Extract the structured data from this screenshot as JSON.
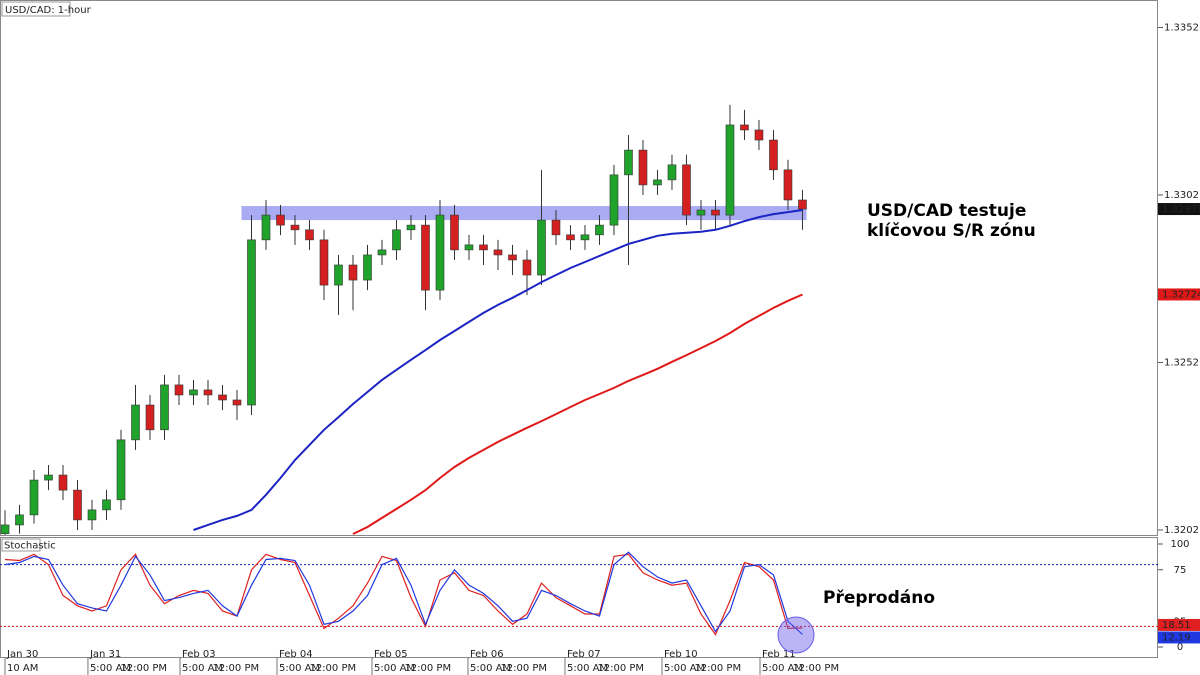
{
  "chart_data": {
    "type": "candlestick",
    "title": "USD/CAD: 1-hour",
    "annotations": [
      "USD/CAD testuje",
      "klíčovou S/R zónu",
      "Přeprodáno"
    ],
    "xlim": [
      -0.345,
      79.52
    ],
    "ylim": [
      1.32006,
      1.33603
    ],
    "yticks": [
      1.32021,
      1.32521,
      1.33021,
      1.33521
    ],
    "xticks": [
      {
        "value": 0,
        "label": "Jan 30"
      },
      {
        "value": 5.72,
        "label": "Jan 31"
      },
      {
        "value": 12.07,
        "label": "Feb 03"
      },
      {
        "value": 18.76,
        "label": "Feb 04"
      },
      {
        "value": 25.31,
        "label": "Feb 05"
      },
      {
        "value": 31.93,
        "label": "Feb 06"
      },
      {
        "value": 38.62,
        "label": "Feb 07"
      },
      {
        "value": 45.31,
        "label": "Feb 10"
      },
      {
        "value": 52.07,
        "label": "Feb 11"
      }
    ],
    "xticks_minor": [
      {
        "value": 0,
        "label": "10 AM"
      },
      {
        "value": 5.72,
        "label": "5:00 AM"
      },
      {
        "value": 7.82,
        "label": "12:00 PM"
      },
      {
        "value": 12.07,
        "label": "5:00 AM"
      },
      {
        "value": 14.17,
        "label": "12:00 PM"
      },
      {
        "value": 18.76,
        "label": "5:00 AM"
      },
      {
        "value": 20.86,
        "label": "12:00 PM"
      },
      {
        "value": 25.31,
        "label": "5:00 AM"
      },
      {
        "value": 27.41,
        "label": "12:00 PM"
      },
      {
        "value": 31.93,
        "label": "5:00 AM"
      },
      {
        "value": 34.03,
        "label": "12:00 PM"
      },
      {
        "value": 38.62,
        "label": "5:00 AM"
      },
      {
        "value": 40.72,
        "label": "12:00 PM"
      },
      {
        "value": 45.31,
        "label": "5:00 AM"
      },
      {
        "value": 47.41,
        "label": "12:00 PM"
      },
      {
        "value": 52.07,
        "label": "5:00 AM"
      },
      {
        "value": 54.17,
        "label": "12:00 PM"
      }
    ],
    "up_color": "#1fa32a",
    "down_color": "#d42020",
    "open": [
      1.3201,
      1.32036,
      1.32066,
      1.3217,
      1.32185,
      1.3214,
      1.32051,
      1.32081,
      1.32111,
      1.3229,
      1.32394,
      1.3232,
      1.32454,
      1.32424,
      1.32439,
      1.32424,
      1.32409,
      1.32394,
      1.32887,
      1.32961,
      1.32931,
      1.32917,
      1.32887,
      1.32752,
      1.32812,
      1.32767,
      1.32842,
      1.32857,
      1.32917,
      1.32931,
      1.32737,
      1.32961,
      1.32857,
      1.32872,
      1.32857,
      1.32842,
      1.32827,
      1.32782,
      1.32946,
      1.32902,
      1.32887,
      1.32902,
      1.32931,
      1.33081,
      1.33155,
      1.33051,
      1.33066,
      1.33111,
      1.32961,
      1.32976,
      1.32961,
      1.3323,
      1.33215,
      1.33185,
      1.33096,
      1.33006
    ],
    "high": [
      1.3208,
      1.32096,
      1.322,
      1.32215,
      1.32215,
      1.3217,
      1.32111,
      1.32141,
      1.3232,
      1.32454,
      1.32424,
      1.32484,
      1.32484,
      1.32469,
      1.32469,
      1.32454,
      1.32439,
      1.32961,
      1.33006,
      1.32991,
      1.32961,
      1.32946,
      1.32917,
      1.32842,
      1.32842,
      1.32872,
      1.32887,
      1.32946,
      1.32961,
      1.32961,
      1.33006,
      1.32991,
      1.32902,
      1.32902,
      1.32887,
      1.32872,
      1.32857,
      1.33096,
      1.32976,
      1.32931,
      1.32931,
      1.32961,
      1.33111,
      1.332,
      1.33185,
      1.33096,
      1.33141,
      1.33141,
      1.33006,
      1.33006,
      1.3329,
      1.33275,
      1.33245,
      1.33215,
      1.33126,
      1.33036
    ],
    "low": [
      1.32006,
      1.3201,
      1.3204,
      1.3214,
      1.3211,
      1.32021,
      1.32021,
      1.32051,
      1.32081,
      1.3226,
      1.3229,
      1.3229,
      1.32394,
      1.32394,
      1.32394,
      1.32379,
      1.32349,
      1.32364,
      1.32857,
      1.32901,
      1.32872,
      1.32857,
      1.32707,
      1.32663,
      1.32677,
      1.32737,
      1.32812,
      1.32827,
      1.32887,
      1.32677,
      1.32707,
      1.32827,
      1.32827,
      1.32812,
      1.32797,
      1.32782,
      1.32722,
      1.32752,
      1.32872,
      1.32857,
      1.32857,
      1.32872,
      1.32901,
      1.32812,
      1.33021,
      1.33021,
      1.33036,
      1.32931,
      1.32917,
      1.32917,
      1.32931,
      1.33185,
      1.33155,
      1.33066,
      1.32976,
      1.32917
    ],
    "close": [
      1.32036,
      1.32066,
      1.3217,
      1.32185,
      1.3214,
      1.32051,
      1.32081,
      1.32111,
      1.3229,
      1.32394,
      1.3232,
      1.32454,
      1.32424,
      1.32439,
      1.32424,
      1.32409,
      1.32394,
      1.32887,
      1.32961,
      1.32931,
      1.32917,
      1.32887,
      1.32752,
      1.32812,
      1.32767,
      1.32842,
      1.32857,
      1.32917,
      1.32931,
      1.32737,
      1.32961,
      1.32857,
      1.32872,
      1.32857,
      1.32842,
      1.32827,
      1.32782,
      1.32946,
      1.32902,
      1.32887,
      1.32902,
      1.32931,
      1.33081,
      1.33155,
      1.33051,
      1.33066,
      1.33111,
      1.32961,
      1.32976,
      1.32961,
      1.3323,
      1.33215,
      1.33185,
      1.33096,
      1.33006,
      1.32979
    ],
    "zone": {
      "low": 1.32946,
      "high": 1.32988,
      "start": 17,
      "color": "#a9acf2"
    },
    "overlays": [
      {
        "color": "#1c24c4",
        "values": [
          null,
          null,
          null,
          null,
          null,
          null,
          null,
          null,
          null,
          null,
          null,
          null,
          null,
          1.32021,
          1.32036,
          1.32051,
          1.32063,
          1.32081,
          1.32126,
          1.32176,
          1.3223,
          1.32275,
          1.3232,
          1.32358,
          1.32397,
          1.32433,
          1.32469,
          1.32499,
          1.32529,
          1.32558,
          1.32588,
          1.32615,
          1.32642,
          1.32669,
          1.32693,
          1.32714,
          1.32737,
          1.32761,
          1.32782,
          1.32803,
          1.32821,
          1.32839,
          1.32857,
          1.32875,
          1.32887,
          1.32899,
          1.32905,
          1.32908,
          1.32911,
          1.32917,
          1.32929,
          1.32943,
          1.32955,
          1.32964,
          1.3297,
          1.32976
        ]
      },
      {
        "color": "#e01818",
        "values": [
          null,
          null,
          null,
          null,
          null,
          null,
          null,
          null,
          null,
          null,
          null,
          null,
          null,
          null,
          null,
          null,
          null,
          null,
          null,
          null,
          null,
          null,
          null,
          null,
          1.32009,
          1.3203,
          1.32057,
          1.32084,
          1.32111,
          1.3214,
          1.32176,
          1.32209,
          1.32236,
          1.3226,
          1.32284,
          1.32305,
          1.32326,
          1.32346,
          1.32367,
          1.32388,
          1.32409,
          1.32427,
          1.32445,
          1.32466,
          1.32484,
          1.32502,
          1.32523,
          1.32543,
          1.32564,
          1.32585,
          1.32609,
          1.32636,
          1.3266,
          1.32684,
          1.32705,
          1.32724
        ]
      }
    ],
    "stochastic": {
      "title": "Stochastic",
      "ylim": [
        0,
        100
      ],
      "yticks": [
        0,
        25,
        75,
        100
      ],
      "levels": [
        {
          "value": 20,
          "color": "#e01818"
        },
        {
          "value": 80,
          "color": "#1c24c4"
        }
      ],
      "series": [
        {
          "color": "#e02020",
          "values": [
            85,
            84,
            90,
            80,
            50,
            40,
            35,
            40,
            75,
            90,
            60,
            42,
            50,
            55,
            52,
            35,
            30,
            75,
            90,
            85,
            82,
            50,
            18,
            28,
            40,
            62,
            88,
            84,
            48,
            20,
            65,
            72,
            55,
            50,
            35,
            22,
            32,
            62,
            48,
            40,
            32,
            32,
            88,
            90,
            72,
            65,
            60,
            62,
            32,
            12,
            45,
            82,
            78,
            65,
            18,
            18.51
          ]
        },
        {
          "color": "#2038e0",
          "values": [
            80,
            82,
            88,
            85,
            60,
            42,
            38,
            35,
            60,
            88,
            70,
            45,
            48,
            52,
            55,
            40,
            30,
            60,
            85,
            86,
            84,
            60,
            22,
            25,
            35,
            50,
            80,
            86,
            60,
            22,
            55,
            75,
            60,
            52,
            40,
            25,
            28,
            55,
            50,
            42,
            35,
            30,
            80,
            92,
            78,
            68,
            62,
            65,
            40,
            15,
            35,
            78,
            80,
            70,
            25,
            12.19
          ]
        }
      ]
    }
  }
}
